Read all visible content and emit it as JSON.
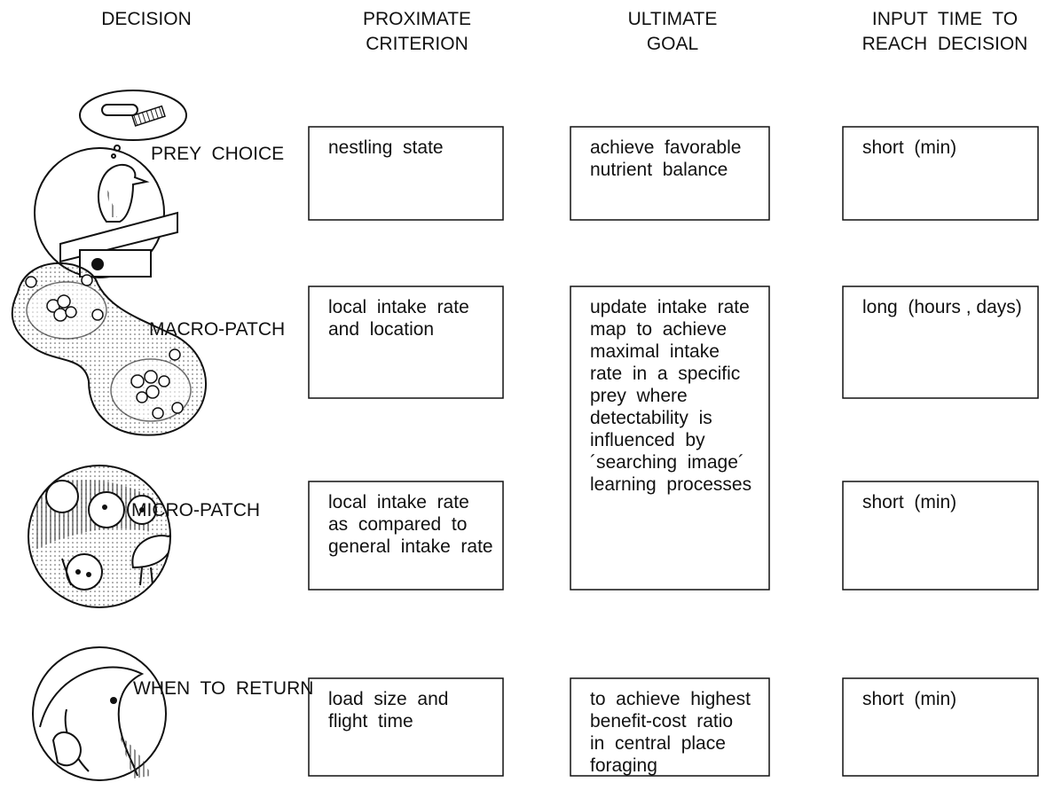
{
  "headers": [
    [
      "DECISION"
    ],
    [
      "PROXIMATE",
      "CRITERION"
    ],
    [
      "ULTIMATE",
      "GOAL"
    ],
    [
      "INPUT  TIME  TO",
      "REACH  DECISION"
    ]
  ],
  "rows": [
    {
      "decision": "PREY  CHOICE",
      "criterion": [
        "nestling  state"
      ],
      "time": [
        "short  (min)"
      ]
    },
    {
      "decision": "MACRO-PATCH",
      "criterion": [
        "local  intake  rate",
        "and  location"
      ],
      "time": [
        "long  (hours , days)"
      ]
    },
    {
      "decision": "MICRO-PATCH",
      "criterion": [
        "local  intake  rate",
        "as  compared  to",
        "general  intake  rate"
      ],
      "time": [
        "short  (min)"
      ]
    },
    {
      "decision": "WHEN  TO  RETURN",
      "criterion": [
        "load  size  and",
        "flight  time"
      ],
      "time": [
        "short  (min)"
      ]
    }
  ],
  "goals": [
    [
      "achieve  favorable",
      "nutrient  balance"
    ],
    [
      "update  intake  rate",
      "map  to  achieve",
      "maximal  intake",
      "rate  in  a  specific",
      "prey  where",
      "detectability  is",
      "influenced  by",
      "´searching  image´",
      "learning  processes"
    ],
    [
      "to  achieve  highest",
      "benefit-cost  ratio",
      "in  central  place",
      "foraging"
    ]
  ]
}
